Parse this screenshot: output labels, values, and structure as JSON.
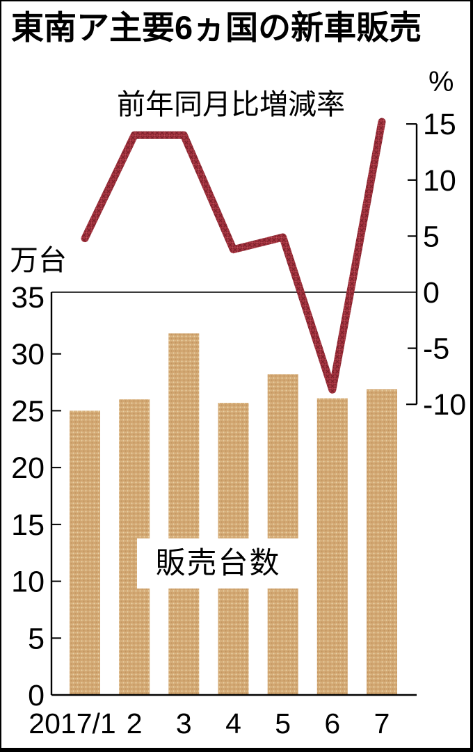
{
  "chart_data": {
    "type": "combo-bar-line",
    "title": "東南ア主要6ヵ国の新車販売",
    "categories": [
      "2017/1",
      "2",
      "3",
      "4",
      "5",
      "6",
      "7"
    ],
    "series": [
      {
        "name": "販売台数",
        "type": "bar",
        "axis": "left",
        "values": [
          25.0,
          26.0,
          31.8,
          25.7,
          28.2,
          26.1,
          26.9
        ]
      },
      {
        "name": "前年同月比増減率",
        "type": "line",
        "axis": "right",
        "values": [
          4.8,
          14.0,
          14.0,
          3.8,
          4.9,
          -8.7,
          15.2
        ]
      }
    ],
    "left_axis": {
      "label": "万台",
      "min": 0,
      "max": 35,
      "ticks": [
        35,
        30,
        25,
        20,
        15,
        10,
        5,
        0
      ]
    },
    "right_axis": {
      "label": "%",
      "min": -10,
      "max": 15,
      "ticks": [
        15,
        10,
        5,
        0,
        -5,
        -10
      ]
    },
    "layout_hints": {
      "grid": "single zero line for right axis",
      "legend": "inline text labels on chart"
    },
    "colors": {
      "bar_fill": "#d3a873",
      "bar_dot_light": "#e9d2a6",
      "bar_dot_dark": "#c3955e",
      "line_stroke": "#a63541",
      "line_hatch_dark": "#7c1f29",
      "line_hatch_light": "#c2535d",
      "axis": "#000000",
      "zero_line": "#3c3c3c",
      "background": "#ffffff",
      "text": "#000000"
    }
  }
}
